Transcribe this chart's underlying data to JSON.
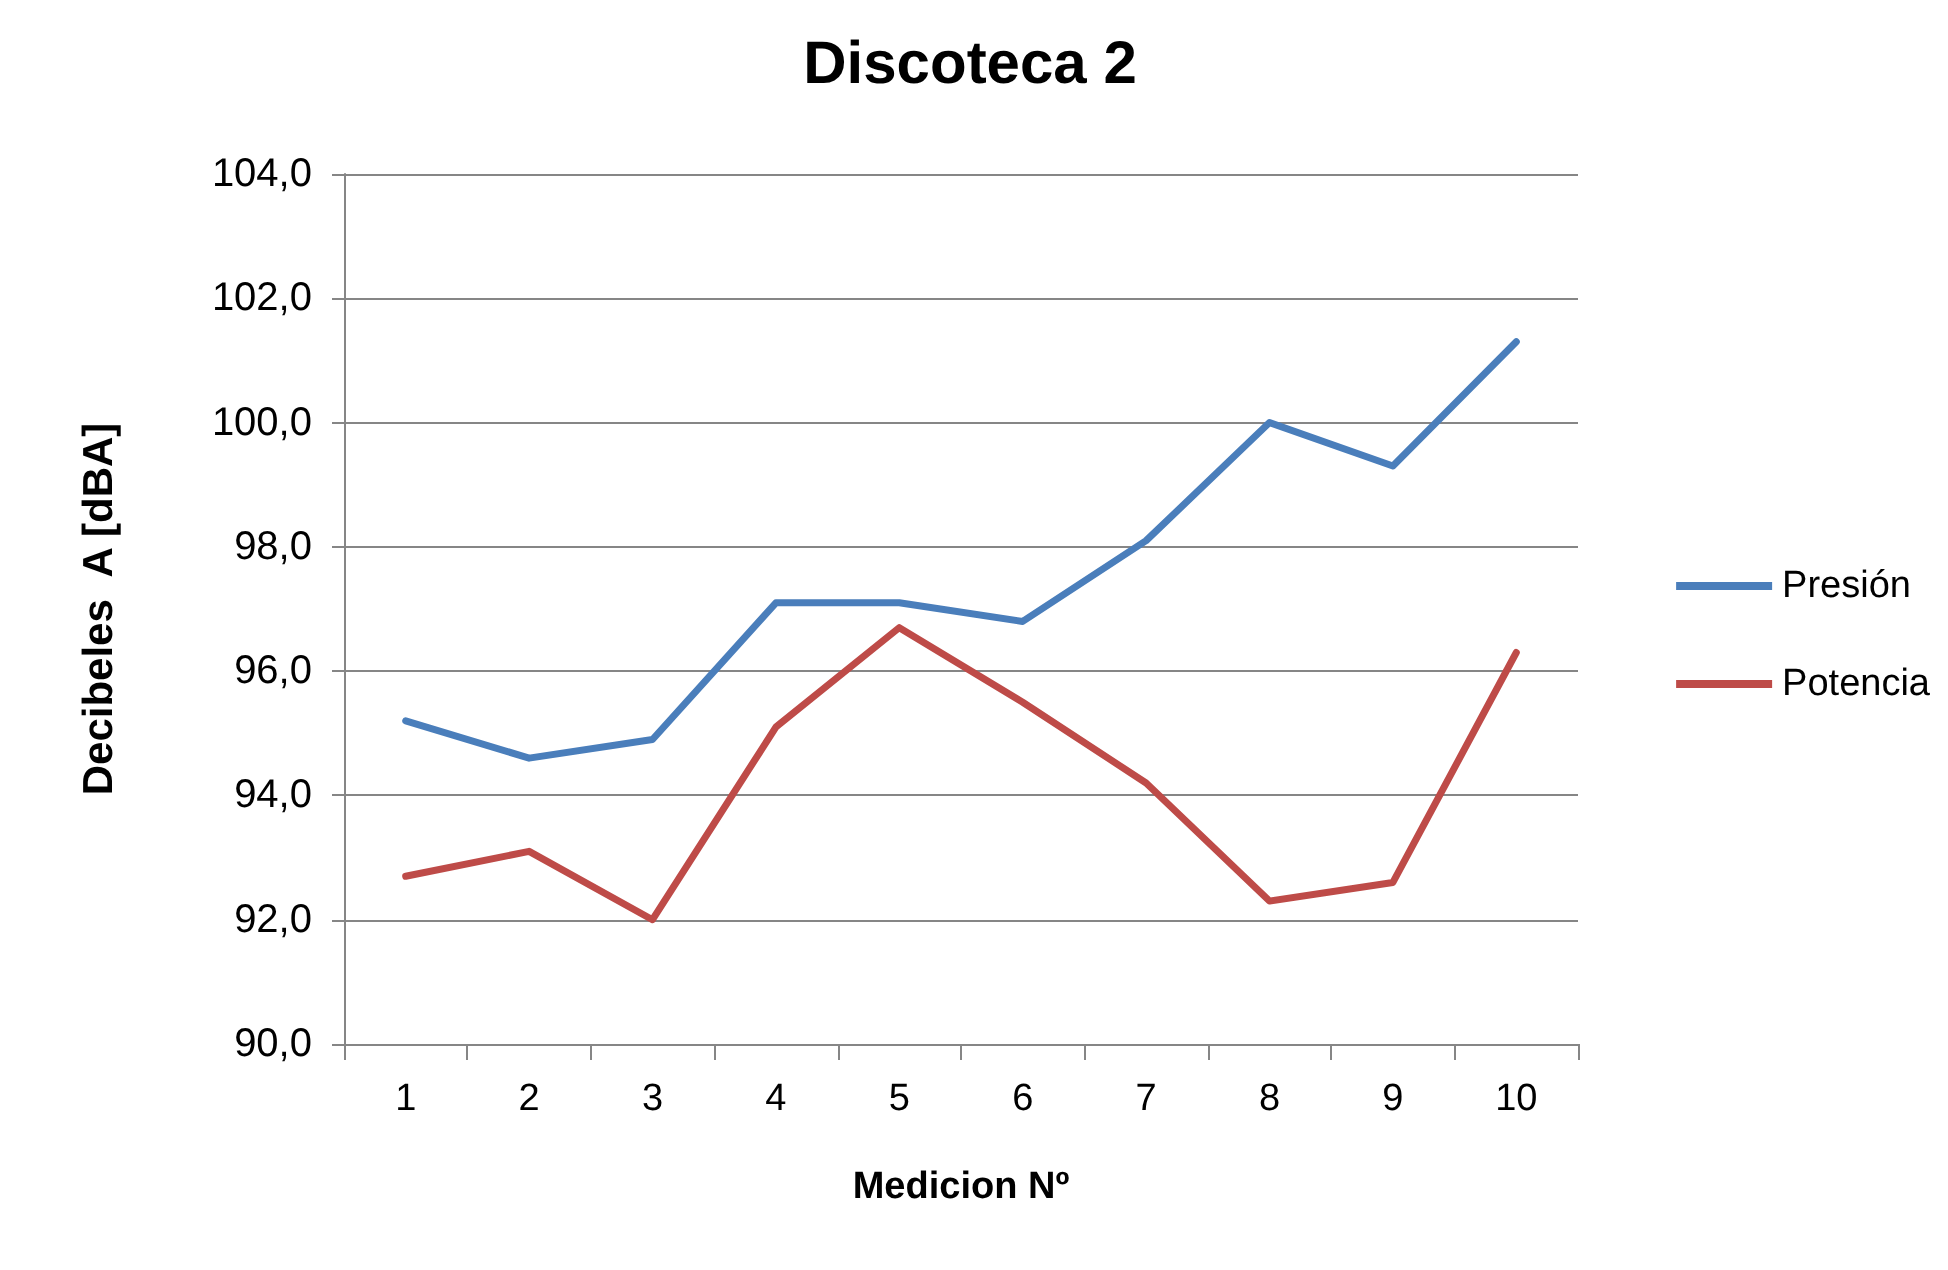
{
  "chart_data": {
    "type": "line",
    "title": "Discoteca 2",
    "xlabel": "Medicion Nº",
    "ylabel": "Decibeles  A [dBA]",
    "categories": [
      "1",
      "2",
      "3",
      "4",
      "5",
      "6",
      "7",
      "8",
      "9",
      "10"
    ],
    "series": [
      {
        "name": "Presión",
        "color": "#4a7ebb",
        "values": [
          95.2,
          94.6,
          94.9,
          97.1,
          97.1,
          96.8,
          98.1,
          100.0,
          99.3,
          101.3
        ]
      },
      {
        "name": "Potencia",
        "color": "#be4b48",
        "values": [
          92.7,
          93.1,
          92.0,
          95.1,
          96.7,
          95.5,
          94.2,
          92.3,
          92.6,
          96.3
        ]
      }
    ],
    "ylim": [
      90,
      104
    ],
    "yticks": [
      {
        "value": 90,
        "label": "90,0"
      },
      {
        "value": 92,
        "label": "92,0"
      },
      {
        "value": 94,
        "label": "94,0"
      },
      {
        "value": 96,
        "label": "96,0"
      },
      {
        "value": 98,
        "label": "98,0"
      },
      {
        "value": 100,
        "label": "100,0"
      },
      {
        "value": 102,
        "label": "102,0"
      },
      {
        "value": 104,
        "label": "104,0"
      }
    ],
    "grid": "y",
    "legend": "right",
    "marker": "none",
    "line_style": "solid"
  }
}
